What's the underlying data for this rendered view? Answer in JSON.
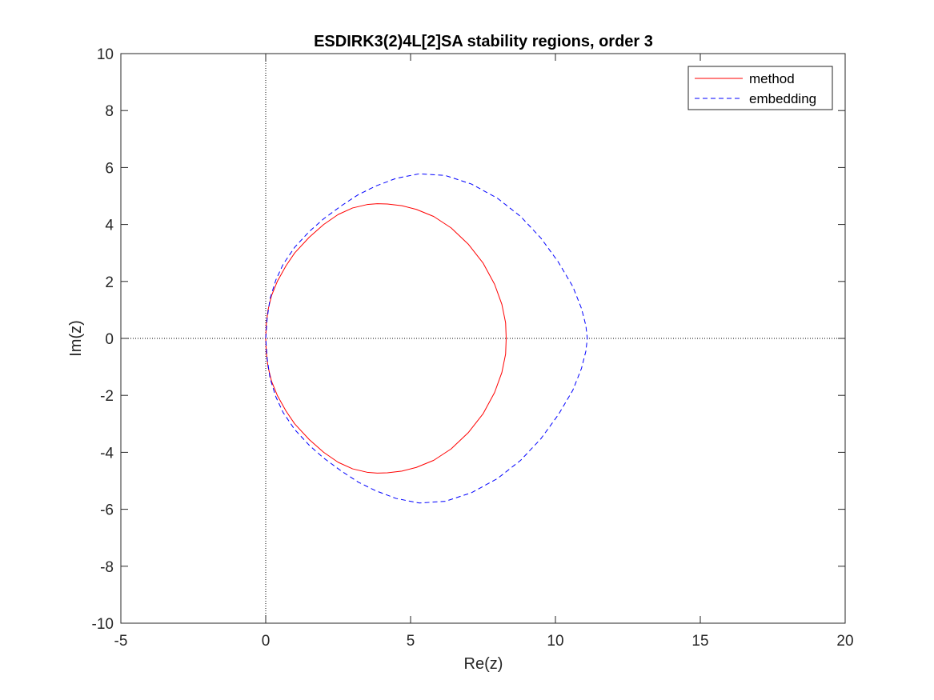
{
  "chart_data": {
    "type": "line",
    "title": "ESDIRK3(2)4L[2]SA stability regions, order 3",
    "xlabel": "Re(z)",
    "ylabel": "Im(z)",
    "xlim": [
      -5,
      20
    ],
    "ylim": [
      -10,
      10
    ],
    "xticks": [
      -5,
      0,
      5,
      10,
      15,
      20
    ],
    "yticks": [
      -10,
      -8,
      -6,
      -4,
      -2,
      0,
      2,
      4,
      6,
      8,
      10
    ],
    "xtick_labels": [
      "-5",
      "0",
      "5",
      "10",
      "15",
      "20"
    ],
    "ytick_labels": [
      "-10",
      "-8",
      "-6",
      "-4",
      "-2",
      "0",
      "2",
      "4",
      "6",
      "8",
      "10"
    ],
    "grid": false,
    "legend_position": "top-right",
    "reference_lines": {
      "x": 0,
      "y": 0,
      "style": "dotted",
      "color": "#000000"
    },
    "series": [
      {
        "name": "method",
        "color": "#ff0000",
        "style": "solid",
        "x": [
          0.0,
          0.02,
          0.08,
          0.2,
          0.4,
          0.7,
          1.0,
          1.5,
          2.0,
          2.5,
          3.0,
          3.5,
          3.85,
          4.2,
          4.7,
          5.2,
          5.8,
          6.4,
          7.0,
          7.5,
          7.9,
          8.15,
          8.28,
          8.3,
          8.28,
          8.15,
          7.9,
          7.5,
          7.0,
          6.4,
          5.8,
          5.2,
          4.7,
          4.2,
          3.85,
          3.5,
          3.0,
          2.5,
          2.0,
          1.5,
          1.0,
          0.7,
          0.4,
          0.2,
          0.08,
          0.02,
          0.0
        ],
        "y": [
          0.0,
          0.5,
          1.0,
          1.5,
          2.0,
          2.55,
          3.0,
          3.55,
          4.0,
          4.35,
          4.58,
          4.7,
          4.73,
          4.72,
          4.66,
          4.53,
          4.28,
          3.88,
          3.3,
          2.65,
          1.9,
          1.2,
          0.55,
          0.0,
          -0.55,
          -1.2,
          -1.9,
          -2.65,
          -3.3,
          -3.88,
          -4.28,
          -4.53,
          -4.66,
          -4.72,
          -4.73,
          -4.7,
          -4.58,
          -4.35,
          -4.0,
          -3.55,
          -3.0,
          -2.55,
          -2.0,
          -1.5,
          -1.0,
          -0.5,
          0.0
        ]
      },
      {
        "name": "embedding",
        "color": "#0000ff",
        "style": "dashed",
        "x": [
          0.0,
          0.05,
          0.15,
          0.35,
          0.6,
          1.0,
          1.5,
          2.0,
          2.6,
          3.2,
          3.8,
          4.5,
          5.3,
          6.2,
          7.1,
          8.0,
          8.8,
          9.5,
          10.1,
          10.6,
          10.9,
          11.05,
          11.1,
          11.05,
          10.9,
          10.6,
          10.1,
          9.5,
          8.8,
          8.0,
          7.1,
          6.2,
          5.3,
          4.5,
          3.8,
          3.2,
          2.6,
          2.0,
          1.5,
          1.0,
          0.6,
          0.35,
          0.15,
          0.05,
          0.0
        ],
        "y": [
          0.0,
          0.7,
          1.4,
          2.05,
          2.6,
          3.2,
          3.75,
          4.2,
          4.65,
          5.05,
          5.35,
          5.62,
          5.78,
          5.72,
          5.42,
          4.92,
          4.28,
          3.52,
          2.68,
          1.82,
          1.05,
          0.45,
          0.0,
          -0.45,
          -1.05,
          -1.82,
          -2.68,
          -3.52,
          -4.28,
          -4.92,
          -5.42,
          -5.72,
          -5.78,
          -5.62,
          -5.35,
          -5.05,
          -4.65,
          -4.2,
          -3.75,
          -3.2,
          -2.6,
          -2.05,
          -1.4,
          -0.7,
          0.0
        ]
      }
    ]
  }
}
